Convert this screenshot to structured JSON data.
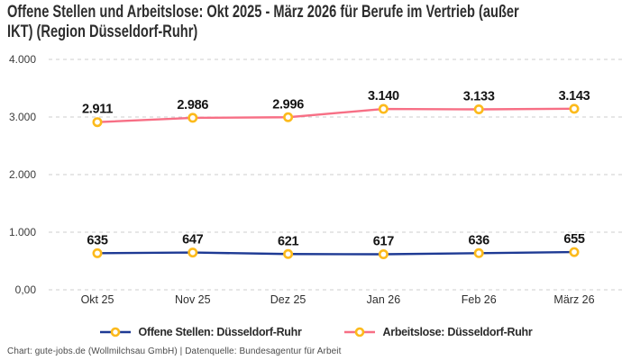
{
  "title": "Offene Stellen und Arbeitslose: Okt 2025 - März 2026 für Berufe im Vertrieb (außer\nIKT) (Region Düsseldorf-Ruhr)",
  "footer": "Chart: gute-jobs.de (Wollmilchsau GmbH) | Datenquelle: Bundesagentur für Arbeit",
  "colors": {
    "open_positions_line": "#1e3a94",
    "unemployed_line": "#f76f85",
    "marker_ring": "#fcba1c",
    "marker_fill": "#ffffff",
    "gridline": "#cdcdcd",
    "value_label": "#141414",
    "axis_label": "#3c3c3c",
    "title_text": "#2e2e2e"
  },
  "chart_data": {
    "type": "line",
    "categories": [
      "Okt 25",
      "Nov 25",
      "Dez 25",
      "Jan 26",
      "Feb 26",
      "März 26"
    ],
    "series": [
      {
        "name": "Offene Stellen: Düsseldorf-Ruhr",
        "values": [
          635,
          647,
          621,
          617,
          636,
          655
        ],
        "labels": [
          "635",
          "647",
          "621",
          "617",
          "636",
          "655"
        ],
        "color": "#1e3a94"
      },
      {
        "name": "Arbeitslose: Düsseldorf-Ruhr",
        "values": [
          2911,
          2986,
          2996,
          3140,
          3133,
          3143
        ],
        "labels": [
          "2.911",
          "2.986",
          "2.996",
          "3.140",
          "3.133",
          "3.143"
        ],
        "color": "#f76f85"
      }
    ],
    "y_ticks": [
      {
        "value": 0,
        "label": "0,00"
      },
      {
        "value": 1000,
        "label": "1.000"
      },
      {
        "value": 2000,
        "label": "2.000"
      },
      {
        "value": 3000,
        "label": "3.000"
      },
      {
        "value": 4000,
        "label": "4.000"
      }
    ],
    "ylim": [
      0,
      4000
    ],
    "grid": "horizontal-dashed",
    "legend_position": "bottom",
    "marker": {
      "shape": "ring",
      "ring_color": "#fcba1c",
      "fill": "#ffffff"
    }
  }
}
